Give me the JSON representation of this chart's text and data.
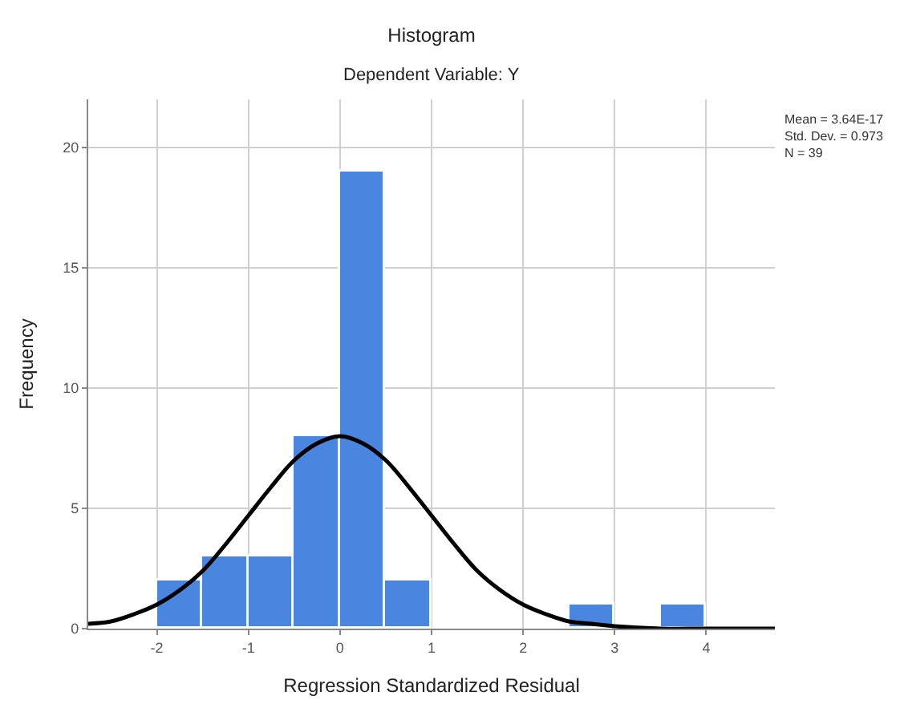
{
  "chart_data": {
    "type": "histogram",
    "title": "Histogram",
    "subtitle": "Dependent Variable: Y",
    "xlabel": "Regression Standardized Residual",
    "ylabel": "Frequency",
    "annotations": [
      "Mean = 3.64E-17",
      "Std. Dev. = 0.973",
      "N = 39"
    ],
    "series": [
      {
        "color": "#4a86e0",
        "bins": [
          -2,
          -1.5,
          -1,
          -0.5,
          0,
          0.5,
          1,
          1.5,
          2,
          2.5,
          3,
          3.5,
          4
        ],
        "values": [
          2,
          3,
          3,
          8,
          19,
          2,
          0,
          0,
          0,
          1,
          0,
          1
        ]
      },
      {
        "type": "line",
        "color": "#000000",
        "x": [
          -2.75,
          -2.5,
          -2.25,
          -2,
          -1.75,
          -1.5,
          -1.25,
          -1,
          -0.75,
          -0.5,
          -0.25,
          0,
          0.25,
          0.5,
          0.75,
          1,
          1.25,
          1.5,
          1.75,
          2,
          2.25,
          2.5,
          2.75,
          3,
          3.5,
          4,
          4.75
        ],
        "values": [
          0.2,
          0.3,
          0.6,
          1.0,
          1.6,
          2.4,
          3.5,
          4.7,
          5.9,
          7.0,
          7.7,
          8.0,
          7.7,
          7.0,
          5.9,
          4.7,
          3.5,
          2.4,
          1.6,
          1.0,
          0.6,
          0.3,
          0.2,
          0.1,
          0.0,
          0.0,
          0.0
        ]
      }
    ],
    "xlim": [
      -2.75,
      4.75
    ],
    "xticks": [
      -2,
      -1,
      0,
      1,
      2,
      3,
      4
    ],
    "ylim": [
      0,
      22
    ],
    "yticks": [
      0,
      5,
      10,
      15,
      20
    ],
    "grid": true
  }
}
